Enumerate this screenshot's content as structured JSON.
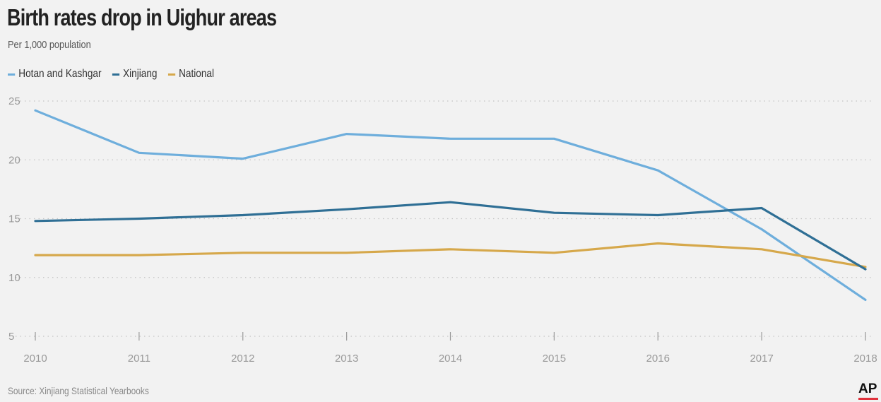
{
  "title": "Birth rates drop in Uighur areas",
  "subtitle": "Per 1,000 population",
  "source": "Source: Xinjiang Statistical Yearbooks",
  "logo_text": "AP",
  "chart_data": {
    "type": "line",
    "title": "Birth rates drop in Uighur areas",
    "subtitle": "Per 1,000 population",
    "x": [
      "2010",
      "2011",
      "2012",
      "2013",
      "2014",
      "2015",
      "2016",
      "2017",
      "2018"
    ],
    "ylim": [
      5,
      25
    ],
    "yticks": [
      "5",
      "10",
      "15",
      "20",
      "25"
    ],
    "grid": "horizontal dotted",
    "legend_position": "top-left",
    "series": [
      {
        "name": "Hotan and Kashgar",
        "color": "#6eaedc",
        "values": [
          24.2,
          20.6,
          20.1,
          22.2,
          21.8,
          21.8,
          19.1,
          14.1,
          8.1
        ]
      },
      {
        "name": "Xinjiang",
        "color": "#2f6f95",
        "values": [
          14.8,
          15.0,
          15.3,
          15.8,
          16.4,
          15.5,
          15.3,
          15.9,
          10.7
        ]
      },
      {
        "name": "National",
        "color": "#d6a84b",
        "values": [
          11.9,
          11.9,
          12.1,
          12.1,
          12.4,
          12.1,
          12.9,
          12.4,
          10.9
        ]
      }
    ]
  }
}
